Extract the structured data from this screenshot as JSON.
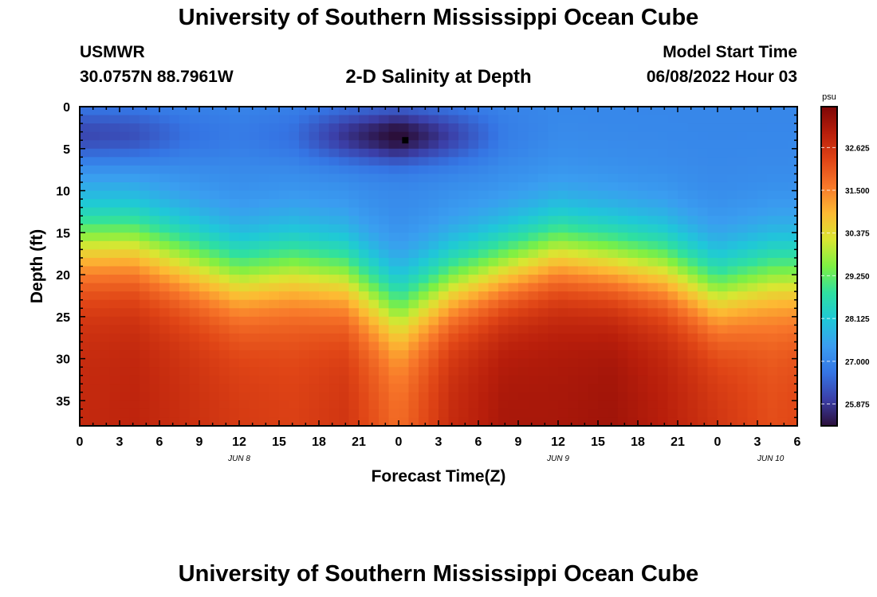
{
  "header": {
    "title": "University of Southern Mississippi Ocean Cube",
    "station": "USMWR",
    "coords": "30.0757N  88.7961W",
    "subtitle": "2-D Salinity at Depth",
    "model_label": "Model Start Time",
    "model_date": "06/08/2022 Hour 03"
  },
  "footer": {
    "title": "University of Southern Mississippi Ocean Cube"
  },
  "chart_data": {
    "type": "heatmap",
    "title": "2-D Salinity at Depth",
    "xlabel": "Forecast Time(Z)",
    "ylabel": "Depth (ft)",
    "x_unit": "forecast hour since 2022-06-08 00Z",
    "x_range_hours": [
      0,
      54
    ],
    "x_ticks": [
      {
        "hour": 0,
        "label": "0"
      },
      {
        "hour": 3,
        "label": "3"
      },
      {
        "hour": 6,
        "label": "6"
      },
      {
        "hour": 9,
        "label": "9"
      },
      {
        "hour": 12,
        "label": "12"
      },
      {
        "hour": 15,
        "label": "15"
      },
      {
        "hour": 18,
        "label": "18"
      },
      {
        "hour": 21,
        "label": "21"
      },
      {
        "hour": 24,
        "label": "0"
      },
      {
        "hour": 27,
        "label": "3"
      },
      {
        "hour": 30,
        "label": "6"
      },
      {
        "hour": 33,
        "label": "9"
      },
      {
        "hour": 36,
        "label": "12"
      },
      {
        "hour": 39,
        "label": "15"
      },
      {
        "hour": 42,
        "label": "18"
      },
      {
        "hour": 45,
        "label": "21"
      },
      {
        "hour": 48,
        "label": "0"
      },
      {
        "hour": 51,
        "label": "3"
      },
      {
        "hour": 54,
        "label": "6"
      }
    ],
    "date_labels": [
      {
        "hour": 12,
        "label": "JUN 8"
      },
      {
        "hour": 36,
        "label": "JUN 9"
      },
      {
        "hour": 52,
        "label": "JUN 10"
      }
    ],
    "y_range": [
      0,
      38
    ],
    "y_reversed": true,
    "y_ticks": [
      0,
      5,
      10,
      15,
      20,
      25,
      30,
      35
    ],
    "marker": {
      "hour": 24.5,
      "depth": 4
    },
    "colorbar": {
      "unit": "psu",
      "range": [
        25.3,
        33.7
      ],
      "ticks": [
        "32.625",
        "31.500",
        "30.375",
        "29.250",
        "28.125",
        "27.000",
        "25.875"
      ],
      "colors": [
        "#2b0f3a",
        "#3b3fa8",
        "#3575e4",
        "#3a9df0",
        "#1fc8d8",
        "#2fe0a0",
        "#7ef043",
        "#d9e632",
        "#fdb933",
        "#f8782a",
        "#e04516",
        "#b81e0b",
        "#7d0606"
      ]
    },
    "profile_samples": {
      "hours": [
        0,
        4,
        8,
        12,
        16,
        20,
        24,
        28,
        32,
        36,
        40,
        44,
        48,
        52,
        54
      ],
      "depth_10_psu_color": "blue (~27.0)",
      "halocline_mid_depth_ft": [
        16,
        16,
        18,
        20,
        19,
        20,
        24,
        21,
        19,
        17,
        18,
        19,
        22,
        20,
        20
      ],
      "surface_min_psu": [
        26.2,
        26.3,
        26.8,
        27.0,
        26.8,
        26.0,
        25.4,
        26.2,
        27.0,
        27.2,
        27.2,
        27.3,
        27.3,
        27.3,
        27.3
      ],
      "bottom_psu": [
        32.8,
        32.9,
        32.7,
        32.5,
        32.4,
        32.6,
        31.8,
        32.8,
        33.2,
        33.2,
        33.3,
        33.0,
        32.6,
        32.2,
        32.3
      ]
    }
  }
}
